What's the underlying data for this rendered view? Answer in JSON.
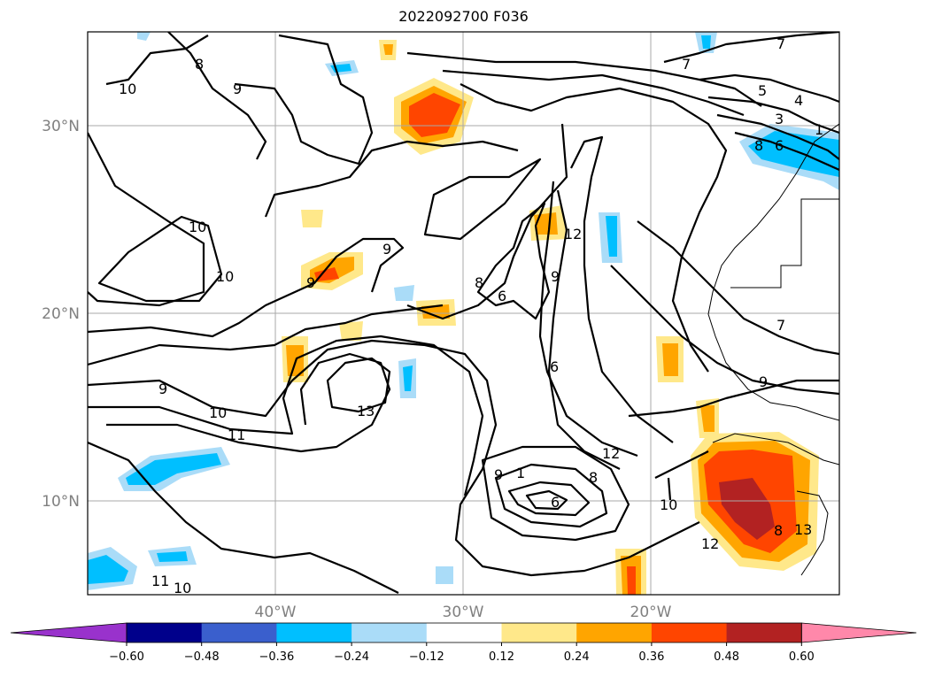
{
  "title": "2022092700 F036",
  "map": {
    "lat_labels": [
      "30°N",
      "20°N",
      "10°N"
    ],
    "lon_labels": [
      "40°W",
      "30°W",
      "20°W"
    ],
    "gridlines": true,
    "contour_color": "#000000",
    "contour_labels": [
      "10",
      "8",
      "9",
      "10",
      "10",
      "9",
      "7",
      "7",
      "5",
      "4",
      "3",
      "1",
      "8",
      "6",
      "12",
      "9",
      "8",
      "6",
      "6",
      "9",
      "13",
      "9",
      "10",
      "11",
      "9",
      "1",
      "6",
      "8",
      "12",
      "10",
      "12",
      "7",
      "9",
      "11",
      "10",
      "8",
      "13"
    ]
  },
  "colorbar": {
    "ticks": [
      "−0.60",
      "−0.48",
      "−0.36",
      "−0.24",
      "−0.12",
      "0.12",
      "0.24",
      "0.36",
      "0.48",
      "0.60"
    ],
    "colors": [
      "#9932cc",
      "#00008b",
      "#3a5fcd",
      "#00bfff",
      "#aadcf8",
      "#ffffff",
      "#ffe88a",
      "#ffa500",
      "#ff4500",
      "#b22222",
      "#ff88aa"
    ],
    "extend": "both"
  }
}
